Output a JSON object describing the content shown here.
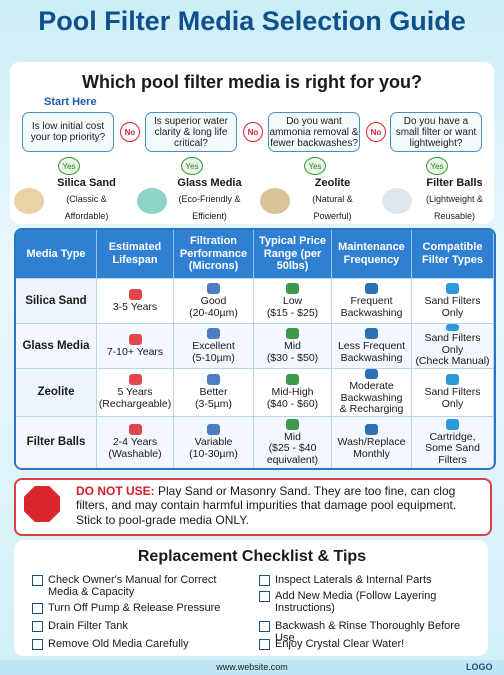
{
  "title": "Pool Filter Media Selection Guide",
  "flow": {
    "heading": "Which pool filter media is right for you?",
    "start": "Start Here",
    "questions": [
      "Is low initial cost your top priority?",
      "Is superior water clarity & long life critical?",
      "Do you want ammonia removal & fewer backwashes?",
      "Do you have a small filter or want lightweight?"
    ],
    "no": [
      "No",
      "No",
      "No"
    ],
    "yes": [
      "Yes",
      "Yes",
      "Yes",
      "Yes"
    ],
    "results": [
      {
        "name": "Silica Sand",
        "note": "(Classic & Affordable)"
      },
      {
        "name": "Glass Media",
        "note": "(Eco-Friendly & Efficient)"
      },
      {
        "name": "Zeolite",
        "note": "(Natural & Powerful)"
      },
      {
        "name": "Filter Balls",
        "note": "(Lightweight & Reusable)"
      }
    ]
  },
  "table": {
    "headers": [
      "Media Type",
      "Estimated Lifespan",
      "Filtration Performance (Microns)",
      "Typical Price Range (per 50lbs)",
      "Maintenance Frequency",
      "Compatible Filter Types"
    ],
    "rows": [
      [
        [
          "Silica Sand"
        ],
        [
          "3-5 Years"
        ],
        [
          "Good",
          "(20-40µm)"
        ],
        [
          "Low",
          "($15 - $25)"
        ],
        [
          "Frequent",
          "Backwashing"
        ],
        [
          "Sand Filters",
          "Only"
        ]
      ],
      [
        [
          "Glass Media"
        ],
        [
          "7-10+ Years"
        ],
        [
          "Excellent",
          "(5-10µm)"
        ],
        [
          "Mid",
          "($30 - $50)"
        ],
        [
          "Less Frequent",
          "Backwashing"
        ],
        [
          "Sand Filters",
          "Only",
          "(Check Manual)"
        ]
      ],
      [
        [
          "Zeolite"
        ],
        [
          "5 Years",
          "(Rechargeable)"
        ],
        [
          "Better",
          "(3-5µm)"
        ],
        [
          "Mid-High",
          "($40 - $60)"
        ],
        [
          "Moderate",
          "Backwashing",
          "& Recharging"
        ],
        [
          "Sand Filters",
          "Only"
        ]
      ],
      [
        [
          "Filter Balls"
        ],
        [
          "2-4 Years",
          "(Washable)"
        ],
        [
          "Variable",
          "(10-30µm)"
        ],
        [
          "Mid",
          "($25 - $40",
          "equivalent)"
        ],
        [
          "Wash/Replace",
          "Monthly"
        ],
        [
          "Cartridge,",
          "Some Sand Filters"
        ]
      ]
    ]
  },
  "warning": {
    "label": "DO NOT USE:",
    "text": "Play Sand or Masonry Sand. They are too fine, can clog filters, and may contain harmful impurities that damage pool equipment. Stick to pool-grade media ONLY."
  },
  "checklist": {
    "title": "Replacement Checklist & Tips",
    "items": [
      "Check Owner's Manual for Correct Media & Capacity",
      "Turn Off Pump & Release Pressure",
      "Drain Filter Tank",
      "Remove Old Media Carefully",
      "Inspect Laterals & Internal Parts",
      "Add New Media (Follow Layering Instructions)",
      "Backwash & Rinse Thoroughly Before Use",
      "Enjoy Crystal Clear Water!"
    ]
  },
  "footer": {
    "url": "www.website.com",
    "logo": "LOGO"
  }
}
